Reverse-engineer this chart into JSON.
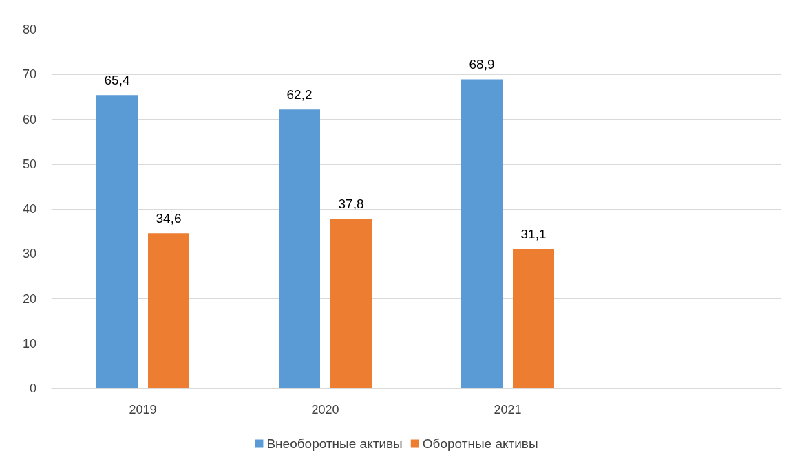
{
  "chart_data": {
    "type": "bar",
    "categories": [
      "2019",
      "2020",
      "2021",
      null
    ],
    "series": [
      {
        "name": "Внеоборотные активы",
        "color": "#5b9bd5",
        "values": [
          65.4,
          62.2,
          68.9,
          null
        ],
        "value_labels": [
          "65,4",
          "62,2",
          "68,9",
          null
        ]
      },
      {
        "name": "Оборотные активы",
        "color": "#ed7d31",
        "values": [
          34.6,
          37.8,
          31.1,
          null
        ],
        "value_labels": [
          "34,6",
          "37,8",
          "31,1",
          null
        ]
      }
    ],
    "ylim": [
      0,
      80
    ],
    "yticks": [
      0,
      10,
      20,
      30,
      40,
      50,
      60,
      70,
      80
    ],
    "grid": "y",
    "legend": "bottom"
  }
}
